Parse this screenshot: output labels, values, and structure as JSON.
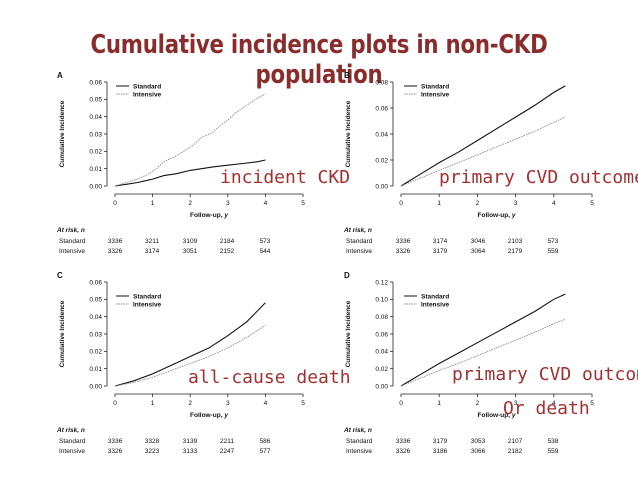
{
  "title": "Cumulative incidence plots in non-CKD population",
  "chart_data": [
    {
      "panel": "A",
      "type": "line",
      "annotation": "incident CKD",
      "xlabel": "Follow-up, y",
      "ylabel": "Cumulative Incidence",
      "x_ticks": [
        "0",
        "1",
        "2",
        "3",
        "4",
        "5"
      ],
      "y_ticks": [
        "0.00",
        "0.01",
        "0.02",
        "0.03",
        "0.04",
        "0.05",
        "0.06"
      ],
      "xlim": [
        0,
        5
      ],
      "ylim": [
        0,
        0.06
      ],
      "legend": [
        "Standard",
        "Intensive"
      ],
      "series": [
        {
          "name": "Standard",
          "x": [
            0,
            0.3,
            0.6,
            0.8,
            1.0,
            1.3,
            1.6,
            2.0,
            2.3,
            2.6,
            3.0,
            3.4,
            3.8,
            4.0
          ],
          "y": [
            0,
            0.001,
            0.002,
            0.003,
            0.004,
            0.006,
            0.007,
            0.009,
            0.01,
            0.011,
            0.012,
            0.013,
            0.014,
            0.015
          ]
        },
        {
          "name": "Intensive",
          "x": [
            0,
            0.3,
            0.6,
            0.9,
            1.1,
            1.3,
            1.6,
            1.9,
            2.1,
            2.3,
            2.6,
            2.8,
            3.0,
            3.2,
            3.4,
            3.6,
            3.8,
            4.0
          ],
          "y": [
            0,
            0.002,
            0.004,
            0.007,
            0.01,
            0.014,
            0.017,
            0.021,
            0.024,
            0.028,
            0.031,
            0.035,
            0.038,
            0.042,
            0.045,
            0.048,
            0.051,
            0.053
          ]
        }
      ],
      "at_risk": {
        "label": "At risk, n",
        "rows": [
          {
            "name": "Standard",
            "values": [
              "3336",
              "3211",
              "3109",
              "2184",
              "573"
            ]
          },
          {
            "name": "Intensive",
            "values": [
              "3326",
              "3174",
              "3051",
              "2152",
              "544"
            ]
          }
        ]
      }
    },
    {
      "panel": "B",
      "type": "line",
      "annotation": "primary CVD outcome",
      "xlabel": "Follow-up, y",
      "ylabel": "Cumulative Incidence",
      "x_ticks": [
        "0",
        "1",
        "2",
        "3",
        "4",
        "5"
      ],
      "y_ticks": [
        "0.00",
        "0.02",
        "0.04",
        "0.06",
        "0.08"
      ],
      "xlim": [
        0,
        5
      ],
      "ylim": [
        0,
        0.08
      ],
      "legend": [
        "Standard",
        "Intensive"
      ],
      "series": [
        {
          "name": "Standard",
          "x": [
            0,
            0.5,
            1.0,
            1.5,
            2.0,
            2.5,
            3.0,
            3.5,
            4.0,
            4.3
          ],
          "y": [
            0,
            0.009,
            0.018,
            0.026,
            0.035,
            0.044,
            0.053,
            0.062,
            0.072,
            0.077
          ]
        },
        {
          "name": "Intensive",
          "x": [
            0,
            0.5,
            1.0,
            1.5,
            2.0,
            2.5,
            3.0,
            3.5,
            4.0,
            4.3
          ],
          "y": [
            0,
            0.006,
            0.012,
            0.018,
            0.024,
            0.03,
            0.036,
            0.042,
            0.049,
            0.053
          ]
        }
      ],
      "at_risk": {
        "label": "At risk, n",
        "rows": [
          {
            "name": "Standard",
            "values": [
              "3336",
              "3174",
              "3046",
              "2103",
              "573"
            ]
          },
          {
            "name": "Intensive",
            "values": [
              "3326",
              "3179",
              "3064",
              "2179",
              "559"
            ]
          }
        ]
      }
    },
    {
      "panel": "C",
      "type": "line",
      "annotation": "all-cause death",
      "xlabel": "Follow-up, y",
      "ylabel": "Cumulative Incidence",
      "x_ticks": [
        "0",
        "1",
        "2",
        "3",
        "4",
        "5"
      ],
      "y_ticks": [
        "0.00",
        "0.01",
        "0.02",
        "0.03",
        "0.04",
        "0.05",
        "0.06"
      ],
      "xlim": [
        0,
        5
      ],
      "ylim": [
        0,
        0.06
      ],
      "legend": [
        "Standard",
        "Intensive"
      ],
      "series": [
        {
          "name": "Standard",
          "x": [
            0,
            0.5,
            1.0,
            1.5,
            2.0,
            2.5,
            3.0,
            3.5,
            4.0
          ],
          "y": [
            0,
            0.003,
            0.007,
            0.012,
            0.017,
            0.022,
            0.029,
            0.037,
            0.048
          ]
        },
        {
          "name": "Intensive",
          "x": [
            0,
            0.5,
            1.0,
            1.5,
            2.0,
            2.5,
            3.0,
            3.5,
            4.0
          ],
          "y": [
            0,
            0.002,
            0.005,
            0.009,
            0.013,
            0.017,
            0.022,
            0.028,
            0.035
          ]
        }
      ],
      "at_risk": {
        "label": "At risk, n",
        "rows": [
          {
            "name": "Standard",
            "values": [
              "3336",
              "3328",
              "3139",
              "2211",
              "586"
            ]
          },
          {
            "name": "Intensive",
            "values": [
              "3326",
              "3223",
              "3133",
              "2247",
              "577"
            ]
          }
        ]
      }
    },
    {
      "panel": "D",
      "type": "line",
      "annotation": "primary CVD outcome",
      "annotation2": "Or death",
      "xlabel": "Follow-up, y",
      "ylabel": "Cumulative Incidence",
      "x_ticks": [
        "0",
        "1",
        "2",
        "3",
        "4",
        "5"
      ],
      "y_ticks": [
        "0.00",
        "0.02",
        "0.04",
        "0.06",
        "0.08",
        "0.10",
        "0.12"
      ],
      "xlim": [
        0,
        5
      ],
      "ylim": [
        0,
        0.12
      ],
      "legend": [
        "Standard",
        "Intensive"
      ],
      "series": [
        {
          "name": "Standard",
          "x": [
            0,
            0.5,
            1.0,
            1.5,
            2.0,
            2.5,
            3.0,
            3.5,
            4.0,
            4.3
          ],
          "y": [
            0,
            0.013,
            0.026,
            0.038,
            0.05,
            0.062,
            0.074,
            0.086,
            0.1,
            0.106
          ]
        },
        {
          "name": "Intensive",
          "x": [
            0,
            0.5,
            1.0,
            1.5,
            2.0,
            2.5,
            3.0,
            3.5,
            4.0,
            4.3
          ],
          "y": [
            0,
            0.009,
            0.018,
            0.026,
            0.035,
            0.044,
            0.053,
            0.062,
            0.072,
            0.077
          ]
        }
      ],
      "at_risk": {
        "label": "At risk, n",
        "rows": [
          {
            "name": "Standard",
            "values": [
              "3336",
              "3179",
              "3053",
              "2107",
              "538"
            ]
          },
          {
            "name": "Intensive",
            "values": [
              "3326",
              "3186",
              "3066",
              "2182",
              "559"
            ]
          }
        ]
      }
    }
  ]
}
